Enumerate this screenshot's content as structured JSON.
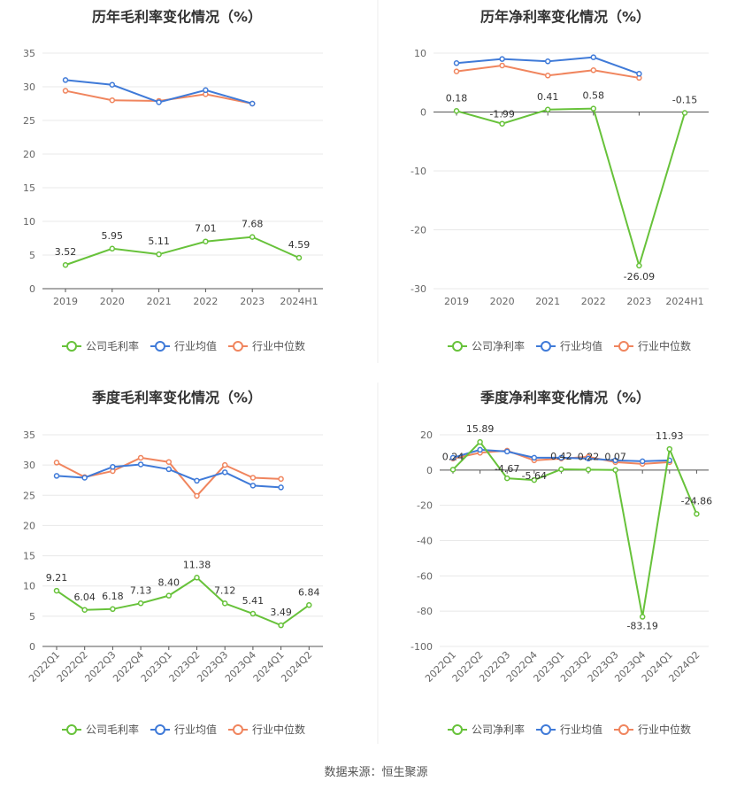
{
  "source_text": "数据来源：恒生聚源",
  "legend_labels": {
    "gross": [
      "公司毛利率",
      "行业均值",
      "行业中位数"
    ],
    "net": [
      "公司净利率",
      "行业均值",
      "行业中位数"
    ]
  },
  "colors": {
    "company": "#67c23a",
    "industry_avg": "#3f7ad8",
    "industry_median": "#f0855e",
    "grid": "#e8e8e8",
    "divider": "#eeeeee"
  },
  "chart_data": [
    {
      "type": "line",
      "title": "历年毛利率变化情况（%）",
      "categories": [
        "2019",
        "2020",
        "2021",
        "2022",
        "2023",
        "2024H1"
      ],
      "ylim": [
        0,
        35
      ],
      "yticks": [
        0,
        5,
        10,
        15,
        20,
        25,
        30,
        35
      ],
      "grid": true,
      "legend": "bottom",
      "rotate_x": false,
      "series": [
        {
          "name": "公司毛利率",
          "values": [
            3.52,
            5.95,
            5.11,
            7.01,
            7.68,
            4.59
          ],
          "labels": [
            "3.52",
            "5.95",
            "5.11",
            "7.01",
            "7.68",
            "4.59"
          ]
        },
        {
          "name": "行业均值",
          "values": [
            31.0,
            30.3,
            27.7,
            29.5,
            27.5,
            null
          ]
        },
        {
          "name": "行业中位数",
          "values": [
            29.4,
            28.0,
            27.9,
            28.9,
            27.5,
            null
          ]
        }
      ]
    },
    {
      "type": "line",
      "title": "历年净利率变化情况（%）",
      "categories": [
        "2019",
        "2020",
        "2021",
        "2022",
        "2023",
        "2024H1"
      ],
      "ylim": [
        -30,
        10
      ],
      "yticks": [
        -30,
        -20,
        -10,
        0,
        10
      ],
      "grid": true,
      "legend": "bottom",
      "rotate_x": false,
      "series": [
        {
          "name": "公司净利率",
          "values": [
            0.18,
            -1.99,
            0.41,
            0.58,
            -26.09,
            -0.15
          ],
          "labels": [
            "0.18",
            "-1.99",
            "0.41",
            "0.58",
            "-26.09",
            "-0.15"
          ]
        },
        {
          "name": "行业均值",
          "values": [
            8.3,
            9.0,
            8.6,
            9.3,
            6.5,
            null
          ]
        },
        {
          "name": "行业中位数",
          "values": [
            6.9,
            7.9,
            6.2,
            7.1,
            5.8,
            null
          ]
        }
      ]
    },
    {
      "type": "line",
      "title": "季度毛利率变化情况（%）",
      "categories": [
        "2022Q1",
        "2022Q2",
        "2022Q3",
        "2022Q4",
        "2023Q1",
        "2023Q2",
        "2023Q3",
        "2023Q4",
        "2024Q1",
        "2024Q2"
      ],
      "ylim": [
        0,
        35
      ],
      "yticks": [
        0,
        5,
        10,
        15,
        20,
        25,
        30,
        35
      ],
      "grid": true,
      "legend": "bottom",
      "rotate_x": true,
      "series": [
        {
          "name": "公司毛利率",
          "values": [
            9.21,
            6.04,
            6.18,
            7.13,
            8.4,
            11.38,
            7.12,
            5.41,
            3.49,
            6.84
          ],
          "labels": [
            "9.21",
            "6.04",
            "6.18",
            "7.13",
            "8.40",
            "11.38",
            "7.12",
            "5.41",
            "3.49",
            "6.84"
          ]
        },
        {
          "name": "行业均值",
          "values": [
            28.2,
            27.9,
            29.7,
            30.1,
            29.3,
            27.4,
            28.8,
            26.6,
            26.3,
            null
          ]
        },
        {
          "name": "行业中位数",
          "values": [
            30.4,
            28.0,
            29.0,
            31.2,
            30.5,
            24.9,
            30.0,
            27.9,
            27.7,
            null
          ]
        }
      ]
    },
    {
      "type": "line",
      "title": "季度净利率变化情况（%）",
      "categories": [
        "2022Q1",
        "2022Q2",
        "2022Q3",
        "2022Q4",
        "2023Q1",
        "2023Q2",
        "2023Q3",
        "2023Q4",
        "2024Q1",
        "2024Q2"
      ],
      "ylim": [
        -100,
        20
      ],
      "yticks": [
        -100,
        -80,
        -60,
        -40,
        -20,
        0,
        20
      ],
      "grid": true,
      "legend": "bottom",
      "rotate_x": true,
      "series": [
        {
          "name": "公司净利率",
          "values": [
            0.24,
            15.89,
            -4.67,
            -5.64,
            0.42,
            0.22,
            0.07,
            -83.19,
            11.93,
            -24.86
          ],
          "labels": [
            "0.24",
            "15.89",
            "-4.67",
            "-5.64",
            "0.42",
            "0.22",
            "0.07",
            "-83.19",
            "11.93",
            "-24.86"
          ]
        },
        {
          "name": "行业均值",
          "values": [
            7.0,
            11.5,
            10.5,
            7.0,
            7.0,
            6.5,
            5.5,
            5.0,
            5.5,
            null
          ]
        },
        {
          "name": "行业中位数",
          "values": [
            6.5,
            9.8,
            11.0,
            5.5,
            6.5,
            7.5,
            4.5,
            3.5,
            4.5,
            null
          ]
        }
      ]
    }
  ]
}
